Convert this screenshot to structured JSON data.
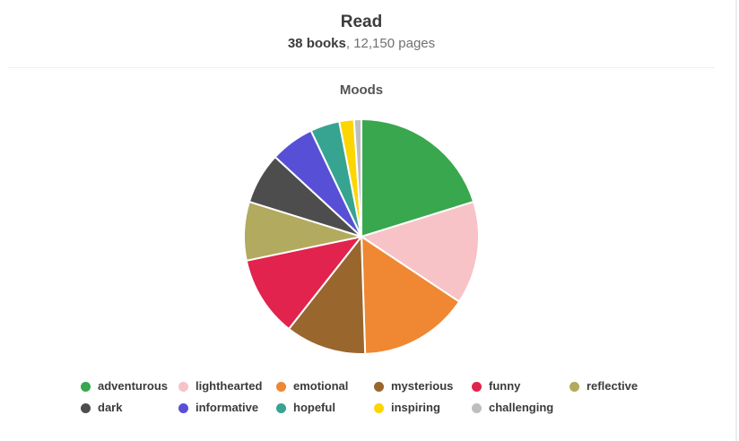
{
  "header": {
    "title": "Read",
    "books": "38 books",
    "pages": ", 12,150 pages"
  },
  "chart_data": {
    "type": "pie",
    "title": "Moods",
    "categories": [
      "adventurous",
      "lighthearted",
      "emotional",
      "mysterious",
      "funny",
      "reflective",
      "dark",
      "informative",
      "hopeful",
      "inspiring",
      "challenging"
    ],
    "values": [
      20,
      14,
      15,
      11,
      11,
      8,
      7,
      6,
      4,
      2,
      1
    ],
    "colors": [
      "#38a74e",
      "#f7c3c6",
      "#ef8733",
      "#99662d",
      "#e2234e",
      "#b2aa5e",
      "#4d4d4d",
      "#584fd7",
      "#36a491",
      "#fcd602",
      "#bebebe"
    ],
    "start_angle_deg": 0,
    "direction": "clockwise",
    "legend_position": "bottom",
    "slice_border_color": "#ffffff"
  }
}
